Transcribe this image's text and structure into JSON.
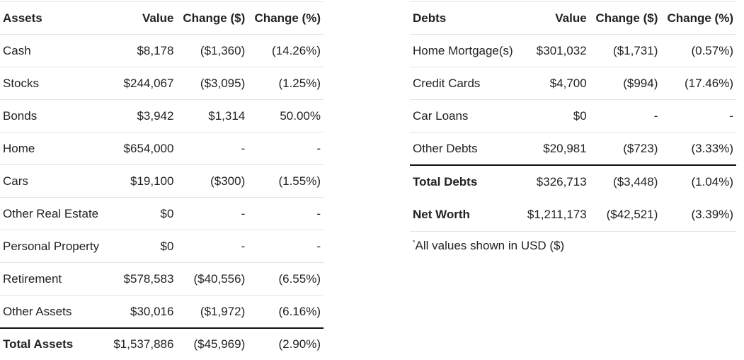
{
  "assets": {
    "headers": [
      "Assets",
      "Value",
      "Change ($)",
      "Change (%)"
    ],
    "rows": [
      [
        "Cash",
        "$8,178",
        "($1,360)",
        "(14.26%)"
      ],
      [
        "Stocks",
        "$244,067",
        "($3,095)",
        "(1.25%)"
      ],
      [
        "Bonds",
        "$3,942",
        "$1,314",
        "50.00%"
      ],
      [
        "Home",
        "$654,000",
        "-",
        "-"
      ],
      [
        "Cars",
        "$19,100",
        "($300)",
        "(1.55%)"
      ],
      [
        "Other Real Estate",
        "$0",
        "-",
        "-"
      ],
      [
        "Personal Property",
        "$0",
        "-",
        "-"
      ],
      [
        "Retirement",
        "$578,583",
        "($40,556)",
        "(6.55%)"
      ],
      [
        "Other Assets",
        "$30,016",
        "($1,972)",
        "(6.16%)"
      ]
    ],
    "total": [
      "Total Assets",
      "$1,537,886",
      "($45,969)",
      "(2.90%)"
    ]
  },
  "debts": {
    "headers": [
      "Debts",
      "Value",
      "Change ($)",
      "Change (%)"
    ],
    "rows": [
      [
        "Home Mortgage(s)",
        "$301,032",
        "($1,731)",
        "(0.57%)"
      ],
      [
        "Credit Cards",
        "$4,700",
        "($994)",
        "(17.46%)"
      ],
      [
        "Car Loans",
        "$0",
        "-",
        "-"
      ],
      [
        "Other Debts",
        "$20,981",
        "($723)",
        "(3.33%)"
      ]
    ],
    "total": [
      "Total Debts",
      "$326,713",
      "($3,448)",
      "(1.04%)"
    ],
    "net_worth": [
      "Net Worth",
      "$1,211,173",
      "($42,521)",
      "(3.39%)"
    ]
  },
  "footnote": {
    "marker": "*",
    "text": "All values shown in USD ($)"
  }
}
